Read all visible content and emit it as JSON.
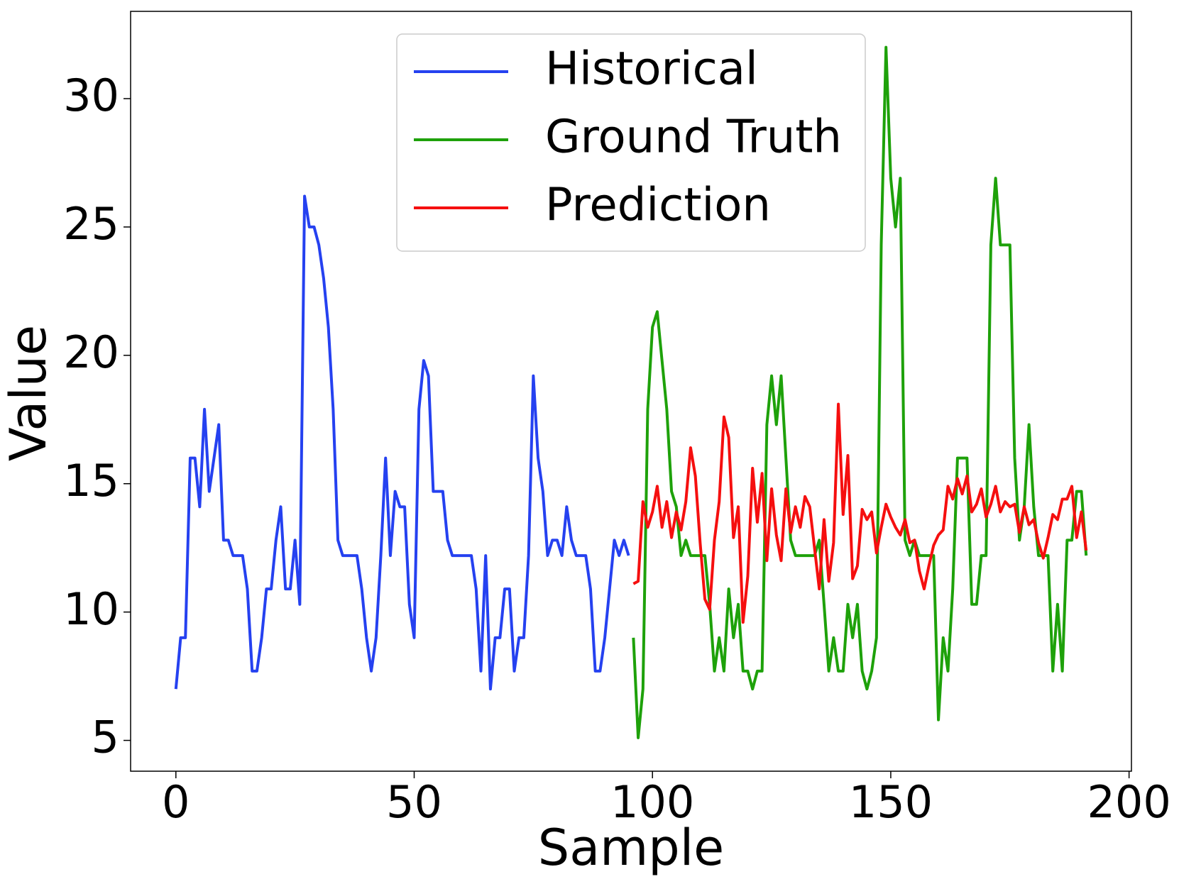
{
  "chart_data": {
    "type": "line",
    "xlabel": "Sample",
    "ylabel": "Value",
    "xlim": [
      -9.5,
      200.5
    ],
    "ylim": [
      3.8,
      33.4
    ],
    "xticks": [
      0,
      50,
      100,
      150,
      200
    ],
    "yticks": [
      5,
      10,
      15,
      20,
      25,
      30
    ],
    "grid": false,
    "legend": "upper center",
    "series": [
      {
        "name": "Historical",
        "color": "#2541f0",
        "x": [
          0,
          1,
          2,
          3,
          4,
          5,
          6,
          7,
          8,
          9,
          10,
          11,
          12,
          13,
          14,
          15,
          16,
          17,
          18,
          19,
          20,
          21,
          22,
          23,
          24,
          25,
          26,
          27,
          28,
          29,
          30,
          31,
          32,
          33,
          34,
          35,
          36,
          37,
          38,
          39,
          40,
          41,
          42,
          43,
          44,
          45,
          46,
          47,
          48,
          49,
          50,
          51,
          52,
          53,
          54,
          55,
          56,
          57,
          58,
          59,
          60,
          61,
          62,
          63,
          64,
          65,
          66,
          67,
          68,
          69,
          70,
          71,
          72,
          73,
          74,
          75,
          76,
          77,
          78,
          79,
          80,
          81,
          82,
          83,
          84,
          85,
          86,
          87,
          88,
          89,
          90,
          91,
          92,
          93,
          94,
          95
        ],
        "values": [
          7.0,
          9.0,
          9.0,
          16.0,
          16.0,
          14.1,
          17.9,
          14.7,
          16.0,
          17.3,
          12.8,
          12.8,
          12.2,
          12.2,
          12.2,
          10.9,
          7.7,
          7.7,
          9.0,
          10.9,
          10.9,
          12.8,
          14.1,
          10.9,
          10.9,
          12.8,
          10.3,
          26.2,
          25.0,
          25.0,
          24.3,
          23.0,
          21.1,
          17.9,
          12.8,
          12.2,
          12.2,
          12.2,
          12.2,
          10.9,
          9.0,
          7.7,
          9.0,
          12.2,
          16.0,
          12.2,
          14.7,
          14.1,
          14.1,
          10.3,
          9.0,
          17.9,
          19.8,
          19.2,
          14.7,
          14.7,
          14.7,
          12.8,
          12.2,
          12.2,
          12.2,
          12.2,
          12.2,
          10.9,
          7.7,
          12.2,
          7.0,
          9.0,
          9.0,
          10.9,
          10.9,
          7.7,
          9.0,
          9.0,
          12.2,
          19.2,
          16.0,
          14.7,
          12.2,
          12.8,
          12.8,
          12.2,
          14.1,
          12.8,
          12.2,
          12.2,
          12.2,
          10.9,
          7.7,
          7.7,
          9.0,
          10.9,
          12.8,
          12.2,
          12.8,
          12.2
        ]
      },
      {
        "name": "Ground Truth",
        "color": "#1ea10a",
        "x": [
          96,
          97,
          98,
          99,
          100,
          101,
          102,
          103,
          104,
          105,
          106,
          107,
          108,
          109,
          110,
          111,
          112,
          113,
          114,
          115,
          116,
          117,
          118,
          119,
          120,
          121,
          122,
          123,
          124,
          125,
          126,
          127,
          128,
          129,
          130,
          131,
          132,
          133,
          134,
          135,
          136,
          137,
          138,
          139,
          140,
          141,
          142,
          143,
          144,
          145,
          146,
          147,
          148,
          149,
          150,
          151,
          152,
          153,
          154,
          155,
          156,
          157,
          158,
          159,
          160,
          161,
          162,
          163,
          164,
          165,
          166,
          167,
          168,
          169,
          170,
          171,
          172,
          173,
          174,
          175,
          176,
          177,
          178,
          179,
          180,
          181,
          182,
          183,
          184,
          185,
          186,
          187,
          188,
          189,
          190,
          191
        ],
        "values": [
          9.0,
          5.1,
          7.0,
          17.9,
          21.1,
          21.7,
          19.8,
          17.9,
          14.7,
          14.1,
          12.2,
          12.8,
          12.2,
          12.2,
          12.2,
          12.2,
          10.3,
          7.7,
          9.0,
          7.7,
          10.9,
          9.0,
          10.3,
          7.7,
          7.7,
          7.0,
          7.7,
          7.7,
          17.3,
          19.2,
          17.3,
          19.2,
          16.0,
          12.8,
          12.2,
          12.2,
          12.2,
          12.2,
          12.2,
          12.8,
          10.3,
          7.7,
          9.0,
          7.7,
          7.7,
          10.3,
          9.0,
          10.3,
          7.7,
          7.0,
          7.7,
          9.0,
          24.3,
          32.0,
          26.9,
          25.0,
          26.9,
          12.8,
          12.2,
          12.8,
          12.2,
          12.2,
          12.2,
          12.2,
          5.8,
          9.0,
          7.7,
          10.9,
          16.0,
          16.0,
          16.0,
          10.3,
          10.3,
          12.2,
          12.2,
          24.3,
          26.9,
          24.3,
          24.3,
          24.3,
          16.0,
          12.8,
          14.1,
          17.3,
          14.1,
          12.2,
          12.2,
          12.2,
          7.7,
          10.3,
          7.7,
          12.8,
          12.8,
          14.7,
          14.7,
          12.2
        ]
      },
      {
        "name": "Prediction",
        "color": "#f50f0f",
        "x": [
          96,
          97,
          98,
          99,
          100,
          101,
          102,
          103,
          104,
          105,
          106,
          107,
          108,
          109,
          110,
          111,
          112,
          113,
          114,
          115,
          116,
          117,
          118,
          119,
          120,
          121,
          122,
          123,
          124,
          125,
          126,
          127,
          128,
          129,
          130,
          131,
          132,
          133,
          134,
          135,
          136,
          137,
          138,
          139,
          140,
          141,
          142,
          143,
          144,
          145,
          146,
          147,
          148,
          149,
          150,
          151,
          152,
          153,
          154,
          155,
          156,
          157,
          158,
          159,
          160,
          161,
          162,
          163,
          164,
          165,
          166,
          167,
          168,
          169,
          170,
          171,
          172,
          173,
          174,
          175,
          176,
          177,
          178,
          179,
          180,
          181,
          182,
          183,
          184,
          185,
          186,
          187,
          188,
          189,
          190,
          191
        ],
        "values": [
          11.1,
          11.2,
          14.3,
          13.3,
          13.9,
          14.9,
          13.3,
          14.3,
          12.9,
          13.9,
          13.2,
          14.3,
          16.4,
          15.3,
          12.7,
          10.5,
          10.1,
          12.8,
          14.3,
          17.6,
          16.8,
          12.9,
          14.1,
          9.6,
          11.4,
          15.6,
          13.5,
          15.4,
          12.0,
          14.8,
          13.0,
          12.0,
          14.8,
          13.1,
          14.1,
          13.3,
          14.5,
          14.1,
          12.5,
          10.9,
          13.6,
          11.2,
          12.7,
          18.1,
          13.8,
          16.1,
          11.3,
          11.8,
          14.0,
          13.6,
          13.9,
          12.3,
          13.3,
          14.2,
          13.7,
          13.3,
          13.0,
          13.6,
          12.7,
          12.8,
          11.6,
          10.9,
          11.8,
          12.6,
          13.0,
          13.2,
          14.9,
          14.4,
          15.2,
          14.6,
          15.3,
          13.9,
          14.2,
          14.8,
          13.7,
          14.2,
          14.9,
          13.9,
          14.3,
          14.1,
          14.2,
          13.1,
          14.1,
          13.4,
          13.6,
          12.7,
          12.1,
          12.9,
          13.8,
          13.6,
          14.4,
          14.4,
          14.9,
          12.9,
          13.9,
          12.4
        ]
      }
    ]
  }
}
